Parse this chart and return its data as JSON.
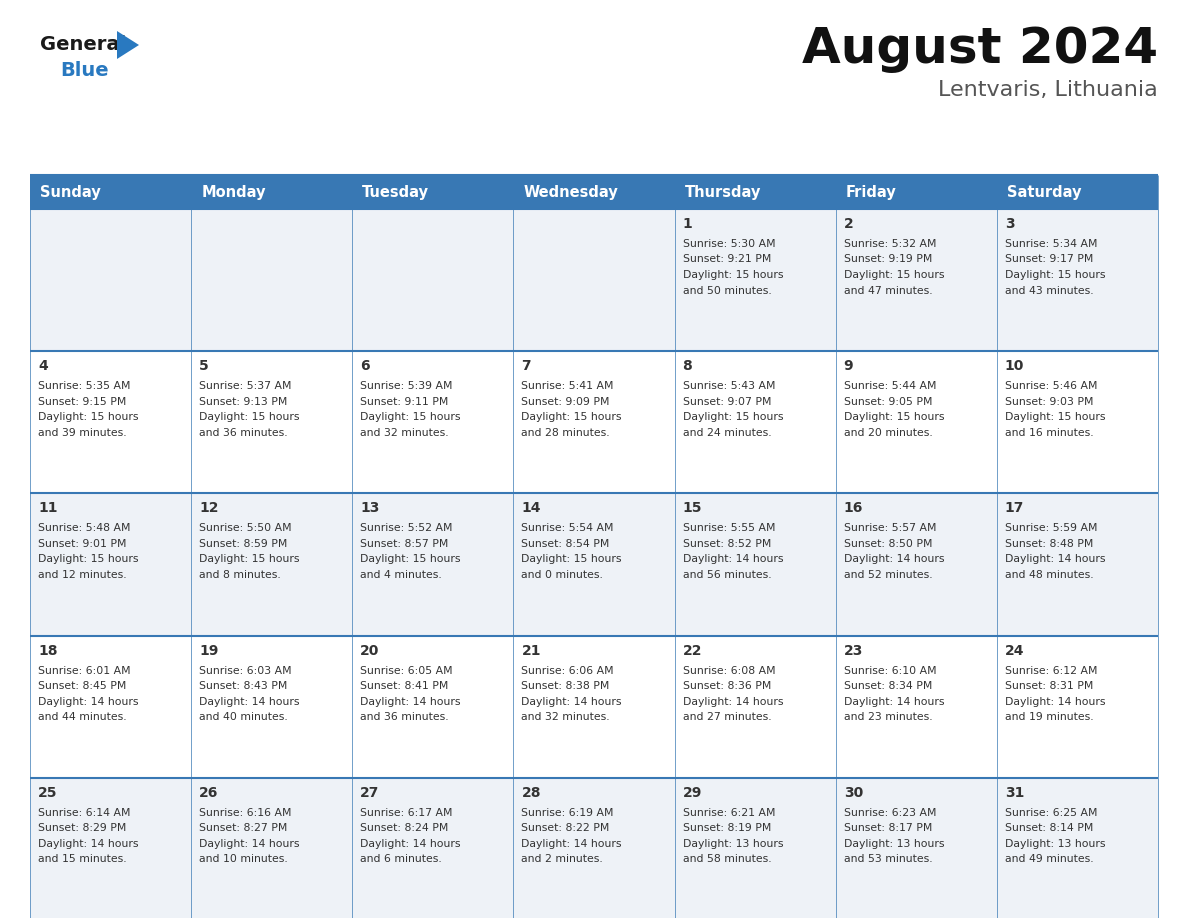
{
  "title": "August 2024",
  "subtitle": "Lentvaris, Lithuania",
  "days_of_week": [
    "Sunday",
    "Monday",
    "Tuesday",
    "Wednesday",
    "Thursday",
    "Friday",
    "Saturday"
  ],
  "header_bg": "#3878b4",
  "header_text": "#ffffff",
  "row_bg_odd": "#eef2f7",
  "row_bg_even": "#ffffff",
  "border_color": "#3878b4",
  "text_color": "#333333",
  "logo_general_color": "#1a1a1a",
  "logo_blue_color": "#2979c0",
  "fig_width": 11.88,
  "fig_height": 9.18,
  "dpi": 100,
  "calendar_data": [
    {
      "day": 1,
      "col": 4,
      "row": 0,
      "sunrise": "5:30 AM",
      "sunset": "9:21 PM",
      "daylight": "15 hours and 50 minutes."
    },
    {
      "day": 2,
      "col": 5,
      "row": 0,
      "sunrise": "5:32 AM",
      "sunset": "9:19 PM",
      "daylight": "15 hours and 47 minutes."
    },
    {
      "day": 3,
      "col": 6,
      "row": 0,
      "sunrise": "5:34 AM",
      "sunset": "9:17 PM",
      "daylight": "15 hours and 43 minutes."
    },
    {
      "day": 4,
      "col": 0,
      "row": 1,
      "sunrise": "5:35 AM",
      "sunset": "9:15 PM",
      "daylight": "15 hours and 39 minutes."
    },
    {
      "day": 5,
      "col": 1,
      "row": 1,
      "sunrise": "5:37 AM",
      "sunset": "9:13 PM",
      "daylight": "15 hours and 36 minutes."
    },
    {
      "day": 6,
      "col": 2,
      "row": 1,
      "sunrise": "5:39 AM",
      "sunset": "9:11 PM",
      "daylight": "15 hours and 32 minutes."
    },
    {
      "day": 7,
      "col": 3,
      "row": 1,
      "sunrise": "5:41 AM",
      "sunset": "9:09 PM",
      "daylight": "15 hours and 28 minutes."
    },
    {
      "day": 8,
      "col": 4,
      "row": 1,
      "sunrise": "5:43 AM",
      "sunset": "9:07 PM",
      "daylight": "15 hours and 24 minutes."
    },
    {
      "day": 9,
      "col": 5,
      "row": 1,
      "sunrise": "5:44 AM",
      "sunset": "9:05 PM",
      "daylight": "15 hours and 20 minutes."
    },
    {
      "day": 10,
      "col": 6,
      "row": 1,
      "sunrise": "5:46 AM",
      "sunset": "9:03 PM",
      "daylight": "15 hours and 16 minutes."
    },
    {
      "day": 11,
      "col": 0,
      "row": 2,
      "sunrise": "5:48 AM",
      "sunset": "9:01 PM",
      "daylight": "15 hours and 12 minutes."
    },
    {
      "day": 12,
      "col": 1,
      "row": 2,
      "sunrise": "5:50 AM",
      "sunset": "8:59 PM",
      "daylight": "15 hours and 8 minutes."
    },
    {
      "day": 13,
      "col": 2,
      "row": 2,
      "sunrise": "5:52 AM",
      "sunset": "8:57 PM",
      "daylight": "15 hours and 4 minutes."
    },
    {
      "day": 14,
      "col": 3,
      "row": 2,
      "sunrise": "5:54 AM",
      "sunset": "8:54 PM",
      "daylight": "15 hours and 0 minutes."
    },
    {
      "day": 15,
      "col": 4,
      "row": 2,
      "sunrise": "5:55 AM",
      "sunset": "8:52 PM",
      "daylight": "14 hours and 56 minutes."
    },
    {
      "day": 16,
      "col": 5,
      "row": 2,
      "sunrise": "5:57 AM",
      "sunset": "8:50 PM",
      "daylight": "14 hours and 52 minutes."
    },
    {
      "day": 17,
      "col": 6,
      "row": 2,
      "sunrise": "5:59 AM",
      "sunset": "8:48 PM",
      "daylight": "14 hours and 48 minutes."
    },
    {
      "day": 18,
      "col": 0,
      "row": 3,
      "sunrise": "6:01 AM",
      "sunset": "8:45 PM",
      "daylight": "14 hours and 44 minutes."
    },
    {
      "day": 19,
      "col": 1,
      "row": 3,
      "sunrise": "6:03 AM",
      "sunset": "8:43 PM",
      "daylight": "14 hours and 40 minutes."
    },
    {
      "day": 20,
      "col": 2,
      "row": 3,
      "sunrise": "6:05 AM",
      "sunset": "8:41 PM",
      "daylight": "14 hours and 36 minutes."
    },
    {
      "day": 21,
      "col": 3,
      "row": 3,
      "sunrise": "6:06 AM",
      "sunset": "8:38 PM",
      "daylight": "14 hours and 32 minutes."
    },
    {
      "day": 22,
      "col": 4,
      "row": 3,
      "sunrise": "6:08 AM",
      "sunset": "8:36 PM",
      "daylight": "14 hours and 27 minutes."
    },
    {
      "day": 23,
      "col": 5,
      "row": 3,
      "sunrise": "6:10 AM",
      "sunset": "8:34 PM",
      "daylight": "14 hours and 23 minutes."
    },
    {
      "day": 24,
      "col": 6,
      "row": 3,
      "sunrise": "6:12 AM",
      "sunset": "8:31 PM",
      "daylight": "14 hours and 19 minutes."
    },
    {
      "day": 25,
      "col": 0,
      "row": 4,
      "sunrise": "6:14 AM",
      "sunset": "8:29 PM",
      "daylight": "14 hours and 15 minutes."
    },
    {
      "day": 26,
      "col": 1,
      "row": 4,
      "sunrise": "6:16 AM",
      "sunset": "8:27 PM",
      "daylight": "14 hours and 10 minutes."
    },
    {
      "day": 27,
      "col": 2,
      "row": 4,
      "sunrise": "6:17 AM",
      "sunset": "8:24 PM",
      "daylight": "14 hours and 6 minutes."
    },
    {
      "day": 28,
      "col": 3,
      "row": 4,
      "sunrise": "6:19 AM",
      "sunset": "8:22 PM",
      "daylight": "14 hours and 2 minutes."
    },
    {
      "day": 29,
      "col": 4,
      "row": 4,
      "sunrise": "6:21 AM",
      "sunset": "8:19 PM",
      "daylight": "13 hours and 58 minutes."
    },
    {
      "day": 30,
      "col": 5,
      "row": 4,
      "sunrise": "6:23 AM",
      "sunset": "8:17 PM",
      "daylight": "13 hours and 53 minutes."
    },
    {
      "day": 31,
      "col": 6,
      "row": 4,
      "sunrise": "6:25 AM",
      "sunset": "8:14 PM",
      "daylight": "13 hours and 49 minutes."
    }
  ]
}
